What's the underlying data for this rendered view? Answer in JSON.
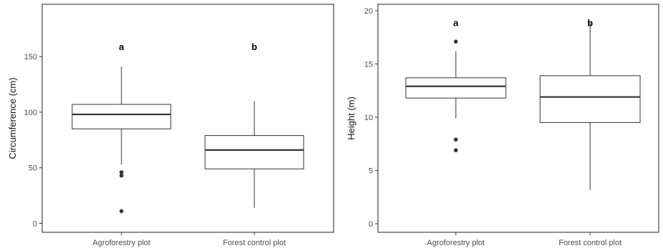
{
  "chart_data": [
    {
      "type": "box",
      "categories": [
        "Agroforestry plot",
        "Forest control plot"
      ],
      "ylabel": "Circumference (cm)",
      "xlabel": "",
      "ylim": [
        -8,
        197
      ],
      "yticks": [
        "0",
        "50",
        "100",
        "150"
      ],
      "grid": false,
      "boxes": [
        {
          "category": "Agroforestry plot",
          "whisker_low": 53,
          "q1": 85,
          "median": 98,
          "q3": 107,
          "whisker_high": 141,
          "outliers": [
            11,
            43,
            46
          ],
          "letter": "a"
        },
        {
          "category": "Forest control plot",
          "whisker_low": 14,
          "q1": 49,
          "median": 66,
          "q3": 79,
          "whisker_high": 110,
          "outliers": [],
          "letter": "b"
        }
      ],
      "letters_y": 159
    },
    {
      "type": "box",
      "categories": [
        "Agroforestry plot",
        "Forest control plot"
      ],
      "ylabel": "Height (m)",
      "xlabel": "",
      "ylim": [
        -0.8,
        20.6
      ],
      "yticks": [
        "0",
        "5",
        "10",
        "15",
        "20"
      ],
      "grid": false,
      "boxes": [
        {
          "category": "Agroforestry plot",
          "whisker_low": 9.9,
          "q1": 11.8,
          "median": 12.9,
          "q3": 13.7,
          "whisker_high": 16.2,
          "outliers": [
            6.9,
            7.9,
            17.1
          ],
          "letter": "a"
        },
        {
          "category": "Forest control plot",
          "whisker_low": 3.2,
          "q1": 9.5,
          "median": 11.9,
          "q3": 13.9,
          "whisker_high": 18.9,
          "outliers": [],
          "letter": "b"
        }
      ],
      "letters_y": 18.9
    }
  ]
}
